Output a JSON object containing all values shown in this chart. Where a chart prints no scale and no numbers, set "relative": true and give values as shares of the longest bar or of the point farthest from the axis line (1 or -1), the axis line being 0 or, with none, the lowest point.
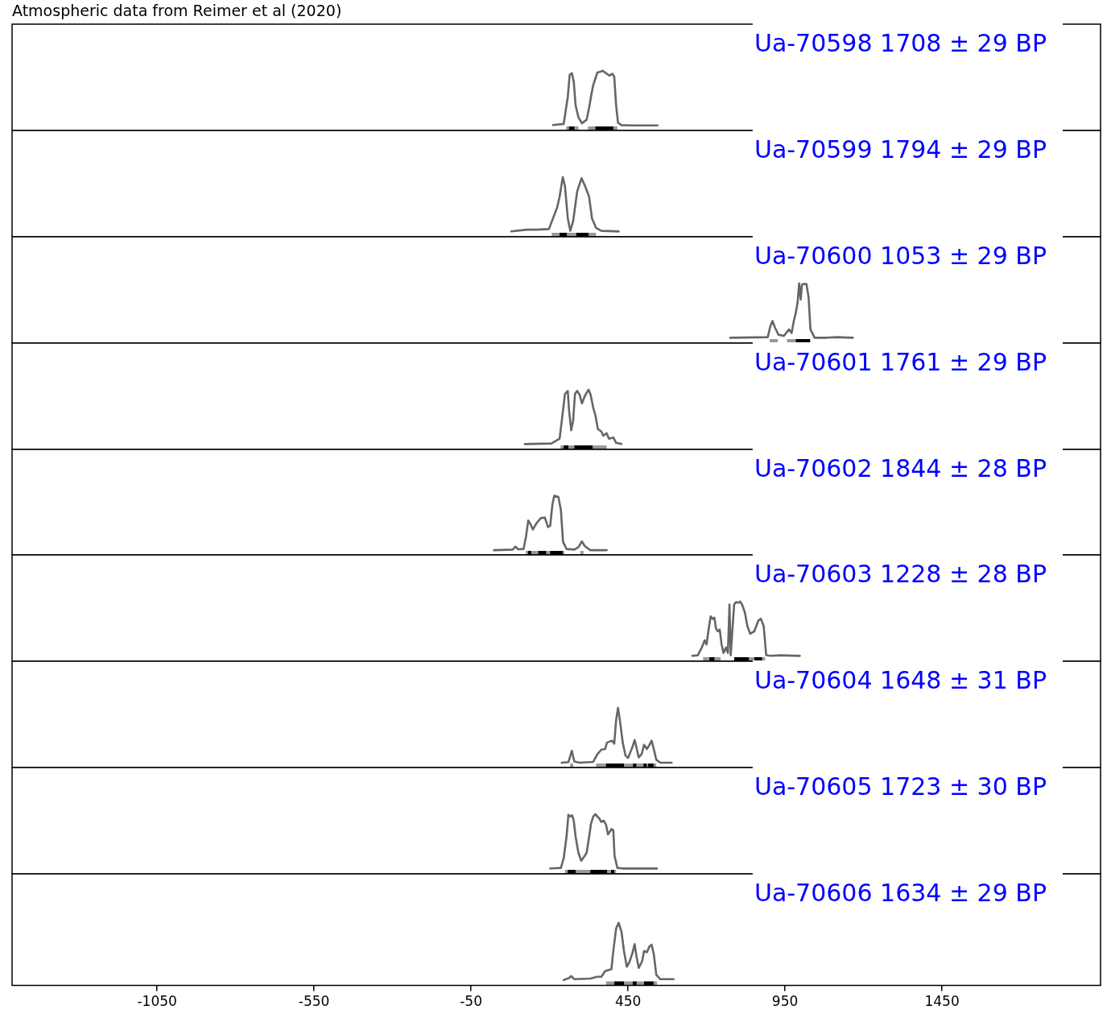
{
  "chart_data": [
    {
      "type": "line",
      "title": "Atmospheric data from Reimer et al (2020)",
      "relative": true,
      "color": "#666666",
      "marker": "none",
      "tick_labels": false,
      "xlim": [
        -1512,
        1955
      ],
      "annotations": [
        "Ua-70598 1708 ± 29 BP"
      ],
      "x": [
        211,
        245,
        258,
        264,
        271,
        277,
        283,
        292,
        303,
        318,
        326,
        333,
        339,
        346,
        352,
        360,
        369,
        382,
        390,
        400,
        406,
        412,
        418,
        429,
        467,
        544
      ],
      "values": [
        0.09,
        0.11,
        0.56,
        0.93,
        0.96,
        0.82,
        0.42,
        0.22,
        0.12,
        0.18,
        0.38,
        0.6,
        0.76,
        0.87,
        0.97,
        0.98,
        1,
        0.95,
        0.92,
        0.95,
        0.9,
        0.42,
        0.13,
        0.09,
        0.085,
        0.085
      ],
      "bands": [
        {
          "axis": "x",
          "from": 253,
          "to": 292,
          "color": "#999999"
        },
        {
          "axis": "x",
          "from": 322,
          "to": 416,
          "color": "#999999"
        },
        {
          "axis": "x",
          "from": 262,
          "to": 279,
          "color": "#000000"
        },
        {
          "axis": "x",
          "from": 346,
          "to": 403,
          "color": "#000000"
        }
      ]
    },
    {
      "type": "line",
      "relative": true,
      "color": "#666666",
      "marker": "none",
      "tick_labels": false,
      "xlim": [
        -1512,
        1955
      ],
      "annotations": [
        "Ua-70599 1794 ± 29 BP"
      ],
      "x": [
        78,
        130,
        159,
        198,
        211,
        224,
        232,
        242,
        249,
        258,
        266,
        275,
        288,
        302,
        313,
        326,
        335,
        348,
        365,
        420
      ],
      "values": [
        0.09,
        0.12,
        0.12,
        0.13,
        0.31,
        0.49,
        0.67,
        1,
        0.85,
        0.31,
        0.1,
        0.26,
        0.76,
        0.98,
        0.85,
        0.67,
        0.31,
        0.15,
        0.1,
        0.09
      ],
      "bands": [
        {
          "axis": "x",
          "from": 207,
          "to": 348,
          "color": "#999999"
        },
        {
          "axis": "x",
          "from": 232,
          "to": 255,
          "color": "#000000"
        },
        {
          "axis": "x",
          "from": 285,
          "to": 324,
          "color": "#000000"
        }
      ]
    },
    {
      "type": "line",
      "relative": true,
      "color": "#666666",
      "marker": "none",
      "tick_labels": false,
      "xlim": [
        -1512,
        1955
      ],
      "annotations": [
        "Ua-70600 1053 ± 29 BP"
      ],
      "x": [
        775,
        895,
        903,
        910,
        918,
        929,
        946,
        963,
        971,
        978,
        984,
        990,
        995,
        1000,
        1004,
        1010,
        1018,
        1025,
        1031,
        1044,
        1083,
        1117,
        1166
      ],
      "values": [
        0.09,
        0.1,
        0.28,
        0.37,
        0.26,
        0.14,
        0.12,
        0.23,
        0.17,
        0.37,
        0.5,
        0.68,
        1,
        0.73,
        0.98,
        0.99,
        0.99,
        0.77,
        0.23,
        0.09,
        0.09,
        0.1,
        0.09
      ],
      "bands": [
        {
          "axis": "x",
          "from": 901,
          "to": 927,
          "color": "#999999"
        },
        {
          "axis": "x",
          "from": 956,
          "to": 984,
          "color": "#999999"
        },
        {
          "axis": "x",
          "from": 984,
          "to": 1030,
          "color": "#000000"
        }
      ]
    },
    {
      "type": "line",
      "relative": true,
      "color": "#666666",
      "marker": "none",
      "tick_labels": false,
      "xlim": [
        -1512,
        1955
      ],
      "annotations": [
        "Ua-70601 1761 ± 29 BP"
      ],
      "x": [
        121,
        206,
        219,
        232,
        241,
        249,
        258,
        262,
        269,
        275,
        281,
        288,
        296,
        303,
        312,
        324,
        330,
        339,
        346,
        354,
        365,
        371,
        382,
        389,
        403,
        412,
        429
      ],
      "values": [
        0.09,
        0.1,
        0.14,
        0.18,
        0.57,
        0.93,
        0.98,
        0.66,
        0.32,
        0.48,
        0.93,
        0.98,
        0.91,
        0.77,
        0.89,
        1,
        0.93,
        0.7,
        0.57,
        0.34,
        0.3,
        0.23,
        0.27,
        0.18,
        0.2,
        0.11,
        0.09
      ],
      "bands": [
        {
          "axis": "x",
          "from": 235,
          "to": 382,
          "color": "#999999"
        },
        {
          "axis": "x",
          "from": 245,
          "to": 260,
          "color": "#000000"
        },
        {
          "axis": "x",
          "from": 279,
          "to": 337,
          "color": "#000000"
        }
      ]
    },
    {
      "type": "line",
      "relative": true,
      "color": "#666666",
      "marker": "none",
      "tick_labels": false,
      "xlim": [
        -1512,
        1955
      ],
      "annotations": [
        "Ua-70602 1844 ± 28 BP"
      ],
      "x": [
        23,
        83,
        91,
        100,
        117,
        125,
        132,
        138,
        147,
        159,
        172,
        185,
        195,
        202,
        209,
        215,
        228,
        236,
        243,
        254,
        279,
        292,
        303,
        312,
        330,
        382
      ],
      "values": [
        0.08,
        0.09,
        0.14,
        0.095,
        0.1,
        0.31,
        0.58,
        0.53,
        0.43,
        0.54,
        0.62,
        0.63,
        0.47,
        0.49,
        0.85,
        1,
        0.98,
        0.76,
        0.22,
        0.1,
        0.09,
        0.13,
        0.23,
        0.15,
        0.08,
        0.08
      ],
      "bands": [
        {
          "axis": "x",
          "from": 124,
          "to": 247,
          "color": "#999999"
        },
        {
          "axis": "x",
          "from": 301,
          "to": 305,
          "color": "#999999"
        },
        {
          "axis": "x",
          "from": 132,
          "to": 141,
          "color": "#000000"
        },
        {
          "axis": "x",
          "from": 164,
          "to": 189,
          "color": "#000000"
        },
        {
          "axis": "x",
          "from": 202,
          "to": 242,
          "color": "#000000"
        }
      ]
    },
    {
      "type": "line",
      "relative": true,
      "color": "#666666",
      "marker": "none",
      "tick_labels": false,
      "xlim": [
        -1512,
        1955
      ],
      "annotations": [
        "Ua-70603 1228 ± 28 BP"
      ],
      "x": [
        655,
        672,
        685,
        694,
        700,
        707,
        713,
        719,
        725,
        730,
        736,
        742,
        748,
        754,
        762,
        768,
        773,
        777,
        782,
        788,
        794,
        801,
        807,
        813,
        822,
        830,
        839,
        852,
        865,
        873,
        882,
        890,
        903,
        937,
        997
      ],
      "values": [
        0.09,
        0.1,
        0.23,
        0.35,
        0.28,
        0.55,
        0.75,
        0.71,
        0.73,
        0.55,
        0.5,
        0.53,
        0.28,
        0.14,
        0.23,
        0.14,
        0.95,
        0.1,
        0.5,
        0.95,
        0.99,
        0.98,
        1,
        0.95,
        0.82,
        0.59,
        0.46,
        0.5,
        0.68,
        0.71,
        0.59,
        0.1,
        0.09,
        0.1,
        0.09
      ],
      "bands": [
        {
          "axis": "x",
          "from": 689,
          "to": 745,
          "color": "#999999"
        },
        {
          "axis": "x",
          "from": 835,
          "to": 852,
          "color": "#999999"
        },
        {
          "axis": "x",
          "from": 877,
          "to": 886,
          "color": "#999999"
        },
        {
          "axis": "x",
          "from": 709,
          "to": 725,
          "color": "#000000"
        },
        {
          "axis": "x",
          "from": 788,
          "to": 835,
          "color": "#000000"
        },
        {
          "axis": "x",
          "from": 852,
          "to": 877,
          "color": "#000000"
        }
      ]
    },
    {
      "type": "line",
      "relative": true,
      "color": "#666666",
      "marker": "none",
      "tick_labels": false,
      "xlim": [
        -1512,
        1955
      ],
      "annotations": [
        "Ua-70604 1648 ± 31 BP"
      ],
      "x": [
        239,
        260,
        271,
        279,
        296,
        339,
        352,
        365,
        377,
        383,
        399,
        406,
        412,
        418,
        424,
        433,
        442,
        450,
        463,
        471,
        477,
        484,
        493,
        501,
        510,
        518,
        525,
        531,
        540,
        553,
        589
      ],
      "values": [
        0.08,
        0.09,
        0.28,
        0.1,
        0.08,
        0.095,
        0.22,
        0.3,
        0.31,
        0.42,
        0.45,
        0.4,
        0.79,
        1,
        0.79,
        0.42,
        0.2,
        0.16,
        0.33,
        0.46,
        0.33,
        0.17,
        0.22,
        0.38,
        0.31,
        0.38,
        0.45,
        0.33,
        0.13,
        0.08,
        0.08
      ],
      "bands": [
        {
          "axis": "x",
          "from": 348,
          "to": 540,
          "color": "#999999"
        },
        {
          "axis": "x",
          "from": 269,
          "to": 272,
          "color": "#999999"
        },
        {
          "axis": "x",
          "from": 380,
          "to": 437,
          "color": "#000000"
        },
        {
          "axis": "x",
          "from": 466,
          "to": 476,
          "color": "#000000"
        },
        {
          "axis": "x",
          "from": 501,
          "to": 508,
          "color": "#000000"
        },
        {
          "axis": "x",
          "from": 514,
          "to": 531,
          "color": "#000000"
        }
      ]
    },
    {
      "type": "line",
      "relative": true,
      "color": "#666666",
      "marker": "none",
      "tick_labels": false,
      "xlim": [
        -1512,
        1955
      ],
      "annotations": [
        "Ua-70605 1723 ± 30 BP"
      ],
      "x": [
        202,
        236,
        245,
        254,
        260,
        266,
        272,
        277,
        283,
        292,
        301,
        309,
        318,
        326,
        332,
        339,
        346,
        352,
        358,
        365,
        373,
        380,
        386,
        390,
        397,
        403,
        407,
        416,
        433,
        542
      ],
      "values": [
        0.09,
        0.1,
        0.26,
        0.62,
        0.99,
        0.96,
        0.98,
        0.89,
        0.62,
        0.35,
        0.22,
        0.28,
        0.35,
        0.62,
        0.84,
        0.96,
        1,
        0.96,
        0.93,
        0.87,
        0.89,
        0.82,
        0.66,
        0.69,
        0.75,
        0.73,
        0.3,
        0.1,
        0.09,
        0.09
      ],
      "bands": [
        {
          "axis": "x",
          "from": 249,
          "to": 412,
          "color": "#999999"
        },
        {
          "axis": "x",
          "from": 258,
          "to": 283,
          "color": "#000000"
        },
        {
          "axis": "x",
          "from": 330,
          "to": 383,
          "color": "#000000"
        },
        {
          "axis": "x",
          "from": 399,
          "to": 403,
          "color": "#000000"
        }
      ]
    },
    {
      "type": "line",
      "relative": true,
      "color": "#666666",
      "marker": "none",
      "tick_labels": "x",
      "xlim": [
        -1512,
        1955
      ],
      "xticks": [
        -1050,
        -550,
        -50,
        450,
        950,
        1450
      ],
      "annotations": [
        "Ua-70606 1634 ± 29 BP"
      ],
      "x": [
        245,
        262,
        269,
        279,
        330,
        352,
        365,
        377,
        397,
        403,
        412,
        420,
        429,
        437,
        446,
        454,
        463,
        471,
        477,
        484,
        495,
        501,
        510,
        518,
        525,
        532,
        540,
        553,
        595
      ],
      "values": [
        0.086,
        0.12,
        0.15,
        0.1,
        0.11,
        0.14,
        0.14,
        0.23,
        0.26,
        0.55,
        0.91,
        1,
        0.86,
        0.55,
        0.3,
        0.37,
        0.5,
        0.66,
        0.46,
        0.28,
        0.39,
        0.55,
        0.53,
        0.62,
        0.65,
        0.5,
        0.17,
        0.1,
        0.1
      ],
      "bands": [
        {
          "axis": "x",
          "from": 380,
          "to": 542,
          "color": "#999999"
        },
        {
          "axis": "x",
          "from": 406,
          "to": 437,
          "color": "#000000"
        },
        {
          "axis": "x",
          "from": 465,
          "to": 477,
          "color": "#000000"
        },
        {
          "axis": "x",
          "from": 501,
          "to": 531,
          "color": "#000000"
        }
      ]
    }
  ]
}
